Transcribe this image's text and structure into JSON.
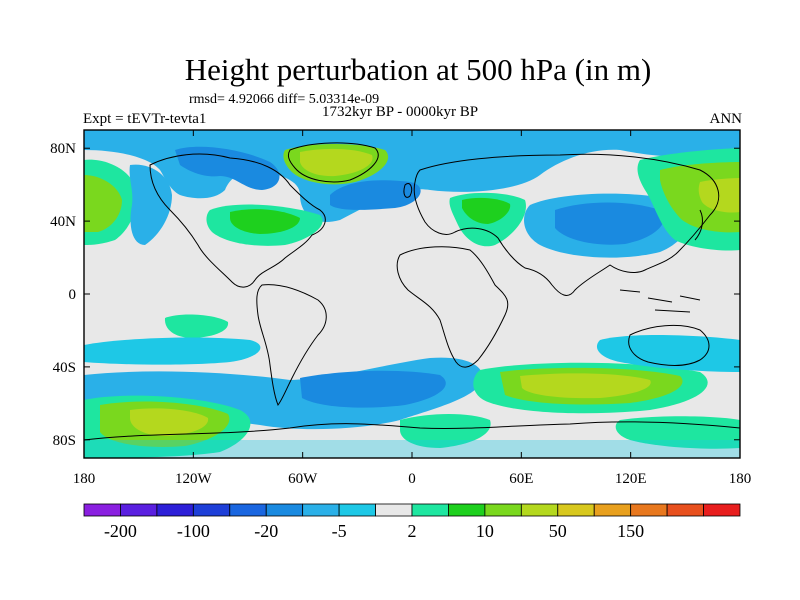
{
  "title": "Height perturbation at 500 hPa (in m)",
  "stats": "rmsd= 4.92066 diff= 5.03314e-09",
  "period": "1732kyr BP - 0000kyr BP",
  "experiment": "Expt = tEVTr-tevta1",
  "season": "ANN",
  "colors": {
    "neutral_band": "#e8e8e8",
    "coast": "#000000",
    "frame": "#000000"
  },
  "chart_data": {
    "type": "heatmap",
    "projection": "cylindrical-equidistant",
    "lon_range": [
      -180,
      180
    ],
    "lat_range": [
      -90,
      90
    ],
    "x_ticks": [
      {
        "value": -180,
        "label": "180"
      },
      {
        "value": -120,
        "label": "120W"
      },
      {
        "value": -60,
        "label": "60W"
      },
      {
        "value": 0,
        "label": "0"
      },
      {
        "value": 60,
        "label": "60E"
      },
      {
        "value": 120,
        "label": "120E"
      },
      {
        "value": 180,
        "label": "180"
      }
    ],
    "y_ticks": [
      {
        "value": 80,
        "label": "80N"
      },
      {
        "value": 40,
        "label": "40N"
      },
      {
        "value": 0,
        "label": "0"
      },
      {
        "value": -40,
        "label": "40S"
      },
      {
        "value": -80,
        "label": "80S"
      }
    ],
    "colorbar": {
      "colors": [
        "#8a1fe0",
        "#5a1fe0",
        "#2d1fd8",
        "#1e3fd8",
        "#1a66e0",
        "#1a8ae0",
        "#2ab0e8",
        "#1ec8e6",
        "#e8e8e8",
        "#1ee6a0",
        "#1ed01e",
        "#7ad81e",
        "#b4d81e",
        "#d8c81e",
        "#e8a01e",
        "#e8781e",
        "#e8501e",
        "#e81e1e"
      ],
      "labels": [
        {
          "boundary": 1,
          "text": "-200"
        },
        {
          "boundary": 3,
          "text": "-100"
        },
        {
          "boundary": 5,
          "text": "-20"
        },
        {
          "boundary": 7,
          "text": "-5"
        },
        {
          "boundary": 9,
          "text": "2"
        },
        {
          "boundary": 11,
          "text": "10"
        },
        {
          "boundary": 13,
          "text": "50"
        },
        {
          "boundary": 15,
          "text": "150"
        }
      ]
    },
    "regions": [
      {
        "name": "greenland-positive",
        "color": "#b4d81e",
        "lon": -45,
        "lat": 76,
        "rx": 12,
        "ry": 5
      },
      {
        "name": "north-atlantic-negative",
        "color": "#2ab0e8",
        "lon": -22,
        "lat": 60,
        "rx": 22,
        "ry": 12
      },
      {
        "name": "siberia-negative",
        "color": "#2ab0e8",
        "lon": 80,
        "lat": 62,
        "rx": 55,
        "ry": 12
      },
      {
        "name": "asia-negative",
        "color": "#1a8ae0",
        "lon": 95,
        "lat": 42,
        "rx": 30,
        "ry": 10
      },
      {
        "name": "north-pacific-positive",
        "color": "#7ad81e",
        "lon": 160,
        "lat": 48,
        "rx": 28,
        "ry": 18
      },
      {
        "name": "north-pacific-positive-west",
        "color": "#7ad81e",
        "lon": -172,
        "lat": 50,
        "rx": 14,
        "ry": 16
      },
      {
        "name": "south-atlantic-negative",
        "color": "#1a8ae0",
        "lon": -25,
        "lat": -55,
        "rx": 45,
        "ry": 12
      },
      {
        "name": "south-indian-positive",
        "color": "#b4d81e",
        "lon": 70,
        "lat": -55,
        "rx": 45,
        "ry": 12
      },
      {
        "name": "south-pacific-positive",
        "color": "#b4d81e",
        "lon": -155,
        "lat": -65,
        "rx": 28,
        "ry": 15
      }
    ]
  }
}
